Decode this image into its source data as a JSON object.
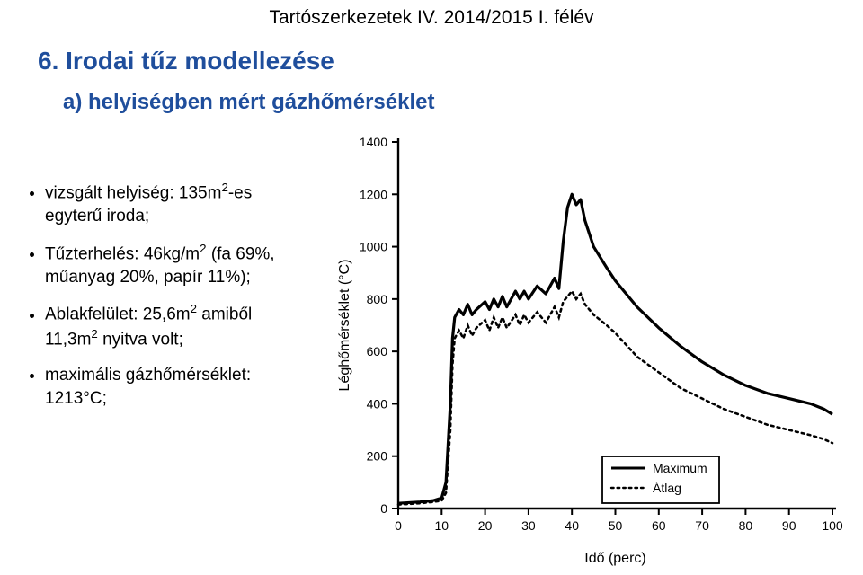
{
  "header": "Tartószerkezetek IV.  2014/2015 I. félév",
  "title": "6. Irodai tűz modellezése",
  "subtitle": "a) helyiségben mért gázhőmérséklet",
  "bullets": [
    "vizsgált helyiség: 135m<sup>2</sup>-es egyterű iroda;",
    "Tűzterhelés: 46kg/m<sup>2</sup> (fa 69%, műanyag 20%, papír 11%);",
    "Ablakfelület: 25,6m<sup>2</sup> amiből 11,3m<sup>2</sup> nyitva volt;",
    "maximális gázhőmérséklet: 1213°C;"
  ],
  "chart": {
    "type": "line",
    "xlabel": "Idő (perc)",
    "ylabel": "Léghőmérséklet (°C)",
    "xlim": [
      0,
      100
    ],
    "ylim": [
      0,
      1400
    ],
    "xtick_step": 10,
    "ytick_step": 200,
    "axis_color": "#000000",
    "grid_color": "#000000",
    "background_color": "#ffffff",
    "label_fontsize": 16,
    "tick_fontsize": 14,
    "line_width_max": 3.2,
    "line_width_avg": 2.6,
    "legend": {
      "items": [
        {
          "label": "Maximum",
          "style": "solid"
        },
        {
          "label": "Átlag",
          "style": "dotted"
        }
      ],
      "border_color": "#000000"
    },
    "series": [
      {
        "name": "Maximum",
        "style": "solid",
        "color": "#000000",
        "points": [
          [
            0,
            20
          ],
          [
            5,
            25
          ],
          [
            8,
            30
          ],
          [
            10,
            40
          ],
          [
            11,
            100
          ],
          [
            12,
            400
          ],
          [
            12.5,
            650
          ],
          [
            13,
            730
          ],
          [
            14,
            760
          ],
          [
            15,
            740
          ],
          [
            16,
            780
          ],
          [
            17,
            740
          ],
          [
            18,
            760
          ],
          [
            20,
            790
          ],
          [
            21,
            760
          ],
          [
            22,
            800
          ],
          [
            23,
            770
          ],
          [
            24,
            810
          ],
          [
            25,
            770
          ],
          [
            27,
            830
          ],
          [
            28,
            800
          ],
          [
            29,
            830
          ],
          [
            30,
            800
          ],
          [
            32,
            850
          ],
          [
            34,
            820
          ],
          [
            36,
            880
          ],
          [
            37,
            840
          ],
          [
            38,
            1020
          ],
          [
            39,
            1150
          ],
          [
            40,
            1200
          ],
          [
            41,
            1160
          ],
          [
            42,
            1180
          ],
          [
            43,
            1100
          ],
          [
            45,
            1000
          ],
          [
            48,
            920
          ],
          [
            50,
            870
          ],
          [
            55,
            770
          ],
          [
            60,
            690
          ],
          [
            65,
            620
          ],
          [
            70,
            560
          ],
          [
            75,
            510
          ],
          [
            80,
            470
          ],
          [
            85,
            440
          ],
          [
            90,
            420
          ],
          [
            95,
            400
          ],
          [
            98,
            380
          ],
          [
            100,
            360
          ]
        ]
      },
      {
        "name": "Átlag",
        "style": "dotted",
        "color": "#000000",
        "points": [
          [
            0,
            15
          ],
          [
            5,
            20
          ],
          [
            8,
            25
          ],
          [
            10,
            30
          ],
          [
            11,
            60
          ],
          [
            12,
            300
          ],
          [
            12.5,
            550
          ],
          [
            13,
            650
          ],
          [
            14,
            680
          ],
          [
            15,
            650
          ],
          [
            16,
            700
          ],
          [
            17,
            660
          ],
          [
            18,
            690
          ],
          [
            20,
            720
          ],
          [
            21,
            680
          ],
          [
            22,
            730
          ],
          [
            23,
            690
          ],
          [
            24,
            730
          ],
          [
            25,
            690
          ],
          [
            27,
            740
          ],
          [
            28,
            700
          ],
          [
            29,
            740
          ],
          [
            30,
            710
          ],
          [
            32,
            750
          ],
          [
            34,
            710
          ],
          [
            36,
            770
          ],
          [
            37,
            730
          ],
          [
            38,
            790
          ],
          [
            39,
            810
          ],
          [
            40,
            830
          ],
          [
            41,
            800
          ],
          [
            42,
            820
          ],
          [
            43,
            780
          ],
          [
            45,
            740
          ],
          [
            48,
            700
          ],
          [
            50,
            670
          ],
          [
            55,
            580
          ],
          [
            60,
            520
          ],
          [
            65,
            460
          ],
          [
            70,
            420
          ],
          [
            75,
            380
          ],
          [
            80,
            350
          ],
          [
            85,
            320
          ],
          [
            90,
            300
          ],
          [
            95,
            280
          ],
          [
            98,
            265
          ],
          [
            100,
            250
          ]
        ]
      }
    ]
  }
}
